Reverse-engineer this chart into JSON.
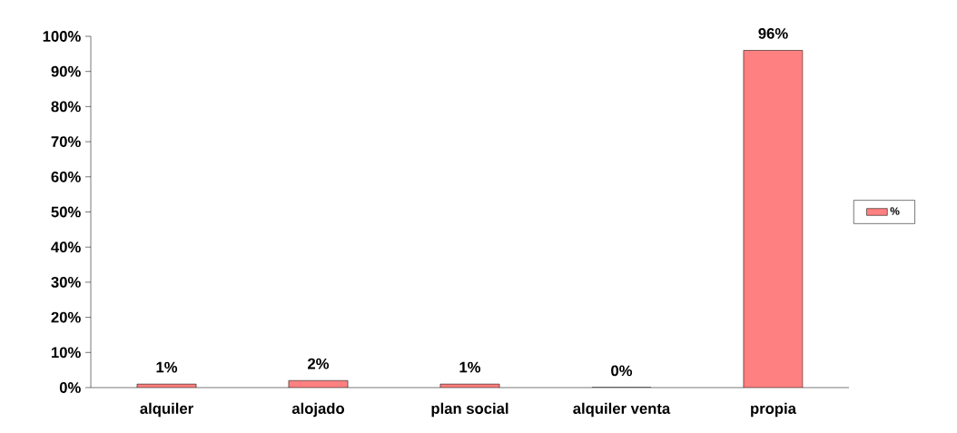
{
  "chart_data": {
    "type": "bar",
    "categories": [
      "alquiler",
      "alojado",
      "plan social",
      "alquiler venta",
      "propia"
    ],
    "series": [
      {
        "name": "%",
        "color": "#ff8080",
        "values": [
          1,
          2,
          1,
          0,
          96
        ],
        "value_labels": [
          "1%",
          "2%",
          "1%",
          "0%",
          "96%"
        ]
      }
    ],
    "ylim": [
      0,
      100
    ],
    "yticks": [
      {
        "value": 0,
        "label": "0%"
      },
      {
        "value": 10,
        "label": "10%"
      },
      {
        "value": 20,
        "label": "20%"
      },
      {
        "value": 30,
        "label": "30%"
      },
      {
        "value": 40,
        "label": "40%"
      },
      {
        "value": 50,
        "label": "50%"
      },
      {
        "value": 60,
        "label": "60%"
      },
      {
        "value": 70,
        "label": "70%"
      },
      {
        "value": 80,
        "label": "80%"
      },
      {
        "value": 90,
        "label": "90%"
      },
      {
        "value": 100,
        "label": "100%"
      }
    ],
    "legend": "right",
    "grid": false
  }
}
